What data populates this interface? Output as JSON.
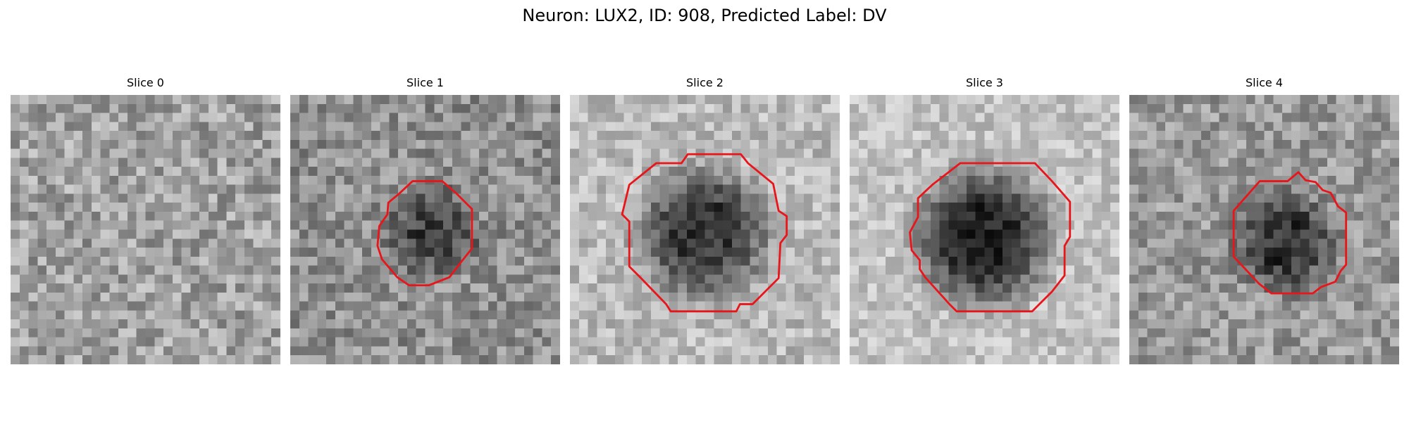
{
  "figure": {
    "title": "Neuron: LUX2, ID: 908, Predicted Label: DV"
  },
  "panels": [
    {
      "title": "Slice 0",
      "has_contour": false,
      "cell_center": [
        15.0,
        15.0
      ],
      "cell_radius": 0,
      "background_level": 0.63,
      "cell_darkness": 0.0,
      "noise": 0.36
    },
    {
      "title": "Slice 1",
      "has_contour": true,
      "cell_center": [
        15.9,
        15.3
      ],
      "cell_radius": 5.3,
      "background_level": 0.56,
      "cell_darkness": 0.32,
      "noise": 0.34,
      "contour": [
        [
          13.6,
          9.6
        ],
        [
          16.9,
          9.6
        ],
        [
          18.4,
          10.9
        ],
        [
          20.2,
          12.7
        ],
        [
          20.2,
          17.1
        ],
        [
          19.0,
          18.6
        ],
        [
          17.7,
          20.3
        ],
        [
          15.4,
          21.2
        ],
        [
          13.2,
          21.2
        ],
        [
          11.9,
          20.3
        ],
        [
          10.2,
          18.3
        ],
        [
          9.7,
          16.8
        ],
        [
          9.9,
          14.6
        ],
        [
          10.8,
          13.3
        ],
        [
          10.9,
          12.0
        ],
        [
          12.1,
          11.0
        ]
      ]
    },
    {
      "title": "Slice 2",
      "has_contour": true,
      "cell_center": [
        14.8,
        15.3
      ],
      "cell_radius": 7.8,
      "background_level": 0.73,
      "cell_darkness": 0.52,
      "noise": 0.28,
      "contour": [
        [
          13.1,
          6.6
        ],
        [
          19.0,
          6.6
        ],
        [
          19.8,
          7.6
        ],
        [
          22.6,
          9.9
        ],
        [
          23.2,
          12.9
        ],
        [
          24.1,
          13.5
        ],
        [
          24.1,
          15.6
        ],
        [
          23.4,
          16.5
        ],
        [
          23.2,
          20.4
        ],
        [
          20.3,
          23.3
        ],
        [
          18.9,
          23.3
        ],
        [
          18.5,
          24.1
        ],
        [
          11.2,
          24.1
        ],
        [
          10.7,
          23.3
        ],
        [
          7.8,
          20.3
        ],
        [
          6.6,
          19.1
        ],
        [
          6.6,
          14.1
        ],
        [
          5.8,
          13.3
        ],
        [
          6.6,
          10.0
        ],
        [
          9.6,
          7.6
        ],
        [
          12.4,
          7.6
        ]
      ]
    },
    {
      "title": "Slice 3",
      "has_contour": true,
      "cell_center": [
        14.9,
        15.8
      ],
      "cell_radius": 8.3,
      "background_level": 0.76,
      "cell_darkness": 0.62,
      "noise": 0.24,
      "contour": [
        [
          12.3,
          7.6
        ],
        [
          20.6,
          7.6
        ],
        [
          22.5,
          9.6
        ],
        [
          24.5,
          11.9
        ],
        [
          24.5,
          15.8
        ],
        [
          23.9,
          16.8
        ],
        [
          23.9,
          20.1
        ],
        [
          22.5,
          21.9
        ],
        [
          21.8,
          22.6
        ],
        [
          20.3,
          24.1
        ],
        [
          18.9,
          24.1
        ],
        [
          18.6,
          24.1
        ],
        [
          11.9,
          24.1
        ],
        [
          11.1,
          23.3
        ],
        [
          8.4,
          20.3
        ],
        [
          7.8,
          19.4
        ],
        [
          7.8,
          18.4
        ],
        [
          6.9,
          17.3
        ],
        [
          6.7,
          15.3
        ],
        [
          7.6,
          13.6
        ],
        [
          7.6,
          11.5
        ],
        [
          9.2,
          10.0
        ]
      ]
    },
    {
      "title": "Slice 4",
      "has_contour": true,
      "cell_center": [
        17.2,
        16.4
      ],
      "cell_radius": 6.0,
      "background_level": 0.6,
      "cell_darkness": 0.4,
      "noise": 0.32,
      "contour": [
        [
          14.5,
          9.6
        ],
        [
          17.6,
          9.6
        ],
        [
          18.8,
          8.6
        ],
        [
          19.6,
          9.5
        ],
        [
          20.7,
          9.7
        ],
        [
          21.5,
          10.6
        ],
        [
          22.4,
          10.9
        ],
        [
          23.2,
          12.4
        ],
        [
          24.1,
          13.1
        ],
        [
          24.1,
          18.9
        ],
        [
          23.5,
          19.6
        ],
        [
          22.9,
          20.8
        ],
        [
          21.3,
          21.4
        ],
        [
          20.4,
          22.1
        ],
        [
          15.8,
          22.1
        ],
        [
          14.4,
          21.0
        ],
        [
          11.6,
          18.0
        ],
        [
          11.6,
          12.9
        ]
      ]
    }
  ]
}
